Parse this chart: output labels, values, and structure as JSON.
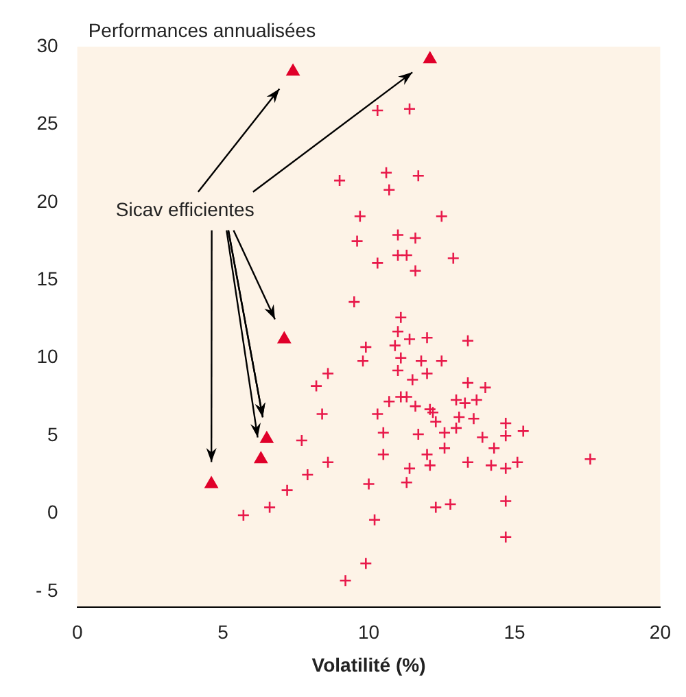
{
  "chart_data": {
    "type": "scatter",
    "ylabel": "Performances annualisées",
    "xlabel": "Volatilité (%)",
    "xlim": [
      0,
      20
    ],
    "xticks": [
      0,
      5,
      10,
      15,
      20
    ],
    "ylim": [
      -6,
      30
    ],
    "yticks": [
      {
        "value": -5,
        "label": "- 5"
      },
      0,
      5,
      10,
      15,
      20,
      25,
      30
    ],
    "grid": false,
    "legend": false,
    "annotations": [
      {
        "text": "Sicav efficientes",
        "x": 6.5,
        "y": 4.8
      }
    ],
    "series": [
      {
        "color": "#e8194a",
        "marker": "cross",
        "x": [
          10.3,
          11.4,
          9.0,
          10.6,
          11.7,
          10.7,
          9.7,
          12.5,
          9.6,
          11.0,
          11.6,
          10.3,
          11.0,
          11.3,
          12.9,
          11.6,
          9.5,
          11.1,
          11.0,
          9.9,
          10.9,
          11.4,
          12.0,
          13.4,
          9.8,
          11.1,
          11.8,
          12.5,
          8.6,
          8.2,
          11.0,
          11.5,
          12.0,
          13.4,
          14.0,
          8.4,
          10.7,
          11.1,
          11.3,
          11.6,
          12.1,
          12.2,
          13.0,
          13.3,
          10.3,
          12.3,
          13.1,
          13.6,
          13.7,
          7.7,
          10.5,
          11.7,
          12.6,
          13.0,
          13.9,
          14.3,
          14.7,
          14.7,
          15.3,
          8.6,
          7.9,
          7.2,
          6.6,
          5.7,
          10.5,
          12.0,
          12.6,
          13.4,
          14.2,
          14.7,
          15.1,
          10.0,
          11.3,
          11.4,
          12.1,
          12.3,
          12.8,
          14.7,
          14.7,
          10.2,
          9.9,
          9.2,
          17.6
        ],
        "values": [
          25.9,
          26.0,
          21.4,
          21.9,
          21.7,
          20.8,
          19.1,
          19.1,
          17.5,
          17.9,
          17.7,
          16.1,
          16.6,
          16.6,
          16.4,
          15.6,
          13.6,
          12.6,
          11.7,
          10.7,
          10.8,
          11.2,
          11.3,
          11.1,
          9.8,
          10.0,
          9.8,
          9.8,
          9.0,
          8.2,
          9.2,
          8.6,
          9.0,
          8.4,
          8.1,
          6.4,
          7.2,
          7.5,
          7.5,
          6.9,
          6.7,
          6.5,
          7.3,
          7.1,
          6.4,
          5.9,
          6.2,
          6.1,
          7.3,
          4.7,
          5.2,
          5.1,
          5.2,
          5.5,
          4.9,
          4.2,
          5.0,
          5.8,
          5.3,
          3.3,
          2.5,
          1.5,
          0.4,
          -0.1,
          3.8,
          3.8,
          4.2,
          3.3,
          3.1,
          2.9,
          3.3,
          1.9,
          2.0,
          2.9,
          3.1,
          0.4,
          0.6,
          0.8,
          -1.5,
          -0.4,
          -3.2,
          -4.3,
          3.5
        ]
      },
      {
        "color": "#e0002a",
        "marker": "triangle",
        "x": [
          7.4,
          12.1,
          7.1,
          6.5,
          6.3,
          4.6
        ],
        "values": [
          28.4,
          29.2,
          11.2,
          4.8,
          3.5,
          1.9
        ]
      }
    ]
  }
}
